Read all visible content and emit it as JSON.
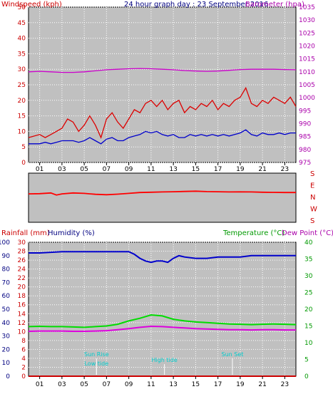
{
  "colors": {
    "plot_bg": "#c0c0c0",
    "grid": "#ffffff",
    "wind": "#ff0000",
    "gust": "#dd0000",
    "wind_avg": "#0000cc",
    "barometer": "#cc00cc",
    "direction": "#ff0000",
    "rain": "#cc0000",
    "humidity": "#0000cc",
    "temperature": "#00dd00",
    "dewpoint": "#dd00dd",
    "sun": "#00cccc",
    "axis_text_red": "#cc0000",
    "axis_text_blue": "#000080",
    "axis_text_green": "#009900",
    "axis_text_magenta": "#aa00aa",
    "axis_text_black": "#000000"
  },
  "chart_data": [
    {
      "type": "line",
      "title": "24 hour graph day : 23 September 2016",
      "left_axis_label": "Windspeed (kph)",
      "right_axis_label": "Barometer (hpa)",
      "ylim": [
        0,
        50
      ],
      "y_ticks": [
        0,
        5,
        10,
        15,
        20,
        25,
        30,
        35,
        40,
        45,
        50
      ],
      "ylim_right": [
        975,
        1035
      ],
      "y_ticks_right": [
        975,
        980,
        985,
        990,
        995,
        1000,
        1005,
        1010,
        1015,
        1020,
        1025,
        1030,
        1035
      ],
      "x_ticks": [
        "01",
        "03",
        "05",
        "07",
        "09",
        "11",
        "13",
        "15",
        "17",
        "19",
        "21",
        "23"
      ],
      "x_range_hours": [
        0,
        24
      ],
      "series": [
        {
          "key": "gust",
          "hours": [
            0,
            1,
            1.5,
            2,
            2.5,
            3,
            3.5,
            4,
            4.5,
            5,
            5.5,
            6,
            6.5,
            7,
            7.5,
            8,
            8.5,
            9,
            9.5,
            10,
            10.5,
            11,
            11.5,
            12,
            12.5,
            13,
            13.5,
            14,
            14.5,
            15,
            15.5,
            16,
            16.5,
            17,
            17.5,
            18,
            18.5,
            19,
            19.5,
            20,
            20.5,
            21,
            21.5,
            22,
            22.5,
            23,
            23.5,
            24
          ],
          "values": [
            8,
            9,
            8,
            9,
            10,
            11,
            14,
            13,
            10,
            12,
            15,
            12,
            8,
            14,
            16,
            13,
            11,
            14,
            17,
            16,
            19,
            20,
            18,
            20,
            17,
            19,
            20,
            16,
            18,
            17,
            19,
            18,
            20,
            17,
            19,
            18,
            20,
            21,
            24,
            19,
            18,
            20,
            19,
            21,
            20,
            19,
            21,
            18
          ]
        },
        {
          "key": "wind_avg",
          "hours": [
            0,
            1,
            1.5,
            2,
            2.5,
            3,
            3.5,
            4,
            4.5,
            5,
            5.5,
            6,
            6.5,
            7,
            7.5,
            8,
            8.5,
            9,
            9.5,
            10,
            10.5,
            11,
            11.5,
            12,
            12.5,
            13,
            13.5,
            14,
            14.5,
            15,
            15.5,
            16,
            16.5,
            17,
            17.5,
            18,
            18.5,
            19,
            19.5,
            20,
            20.5,
            21,
            21.5,
            22,
            22.5,
            23,
            23.5,
            24
          ],
          "values": [
            6,
            6,
            6.5,
            6,
            6.5,
            7,
            7,
            7,
            6.5,
            7,
            8,
            7,
            6,
            7.5,
            8,
            7,
            7,
            8,
            8.5,
            9,
            10,
            9.5,
            10,
            9,
            8.5,
            9,
            8,
            8,
            9,
            8.5,
            9,
            8.5,
            9,
            8.5,
            9,
            8.5,
            9,
            9.5,
            10.5,
            9,
            8.5,
            9.5,
            9,
            9,
            9.5,
            9,
            9.5,
            9.5
          ]
        },
        {
          "key": "barometer",
          "hours": [
            0,
            1,
            2,
            3,
            4,
            5,
            6,
            7,
            8,
            9,
            10,
            11,
            12,
            13,
            14,
            15,
            16,
            17,
            18,
            19,
            20,
            21,
            22,
            23,
            24
          ],
          "values": [
            1010,
            1010.2,
            1010,
            1009.8,
            1009.8,
            1010,
            1010.4,
            1010.8,
            1011,
            1011.2,
            1011.3,
            1011.2,
            1011,
            1010.8,
            1010.5,
            1010.3,
            1010.2,
            1010.3,
            1010.6,
            1010.9,
            1011,
            1011,
            1011,
            1010.9,
            1010.8
          ]
        }
      ]
    },
    {
      "type": "line",
      "direction_labels": [
        "S",
        "E",
        "N",
        "W",
        "S"
      ],
      "x_ticks": [
        "01",
        "03",
        "05",
        "07",
        "09",
        "11",
        "13",
        "15",
        "17",
        "19",
        "21",
        "23"
      ],
      "x_range_hours": [
        0,
        24
      ],
      "series": [
        {
          "key": "direction",
          "hours": [
            0,
            1,
            2,
            2.5,
            3,
            4,
            5,
            6,
            7,
            8,
            9,
            10,
            11,
            12,
            13,
            14,
            15,
            16,
            17,
            18,
            19,
            20,
            21,
            22,
            23,
            24
          ],
          "values_deg": [
            208,
            210,
            215,
            200,
            208,
            215,
            212,
            205,
            202,
            206,
            212,
            218,
            220,
            222,
            224,
            226,
            228,
            225,
            224,
            222,
            223,
            222,
            220,
            219,
            218,
            218
          ]
        }
      ]
    },
    {
      "type": "line",
      "left_axis_label_rain": "Rainfall (mm)",
      "left_axis_label_hum": "Humidity (%)",
      "right_axis_label_temp": "Temperature (°C)",
      "right_axis_label_dew": "Dew Point (°C)",
      "ylim_rain": [
        0,
        30
      ],
      "y_ticks_rain": [
        0,
        2,
        4,
        6,
        8,
        10,
        12,
        14,
        16,
        18,
        20,
        22,
        24,
        26,
        28,
        30
      ],
      "ylim_hum": [
        0,
        100
      ],
      "y_ticks_hum": [
        0,
        10,
        20,
        30,
        40,
        50,
        60,
        70,
        80,
        90,
        100
      ],
      "ylim_temp": [
        0,
        40
      ],
      "y_ticks_temp": [
        0,
        5,
        10,
        15,
        20,
        25,
        30,
        35,
        40
      ],
      "x_ticks": [
        "01",
        "03",
        "05",
        "07",
        "09",
        "11",
        "13",
        "15",
        "17",
        "19",
        "21",
        "23"
      ],
      "x_range_hours": [
        0,
        24
      ],
      "annotations": [
        {
          "text": "Sun Rise",
          "hour": 6.1
        },
        {
          "text": "Low tide",
          "hour": 6.1
        },
        {
          "text": "High tide",
          "hour": 12.2
        },
        {
          "text": "Sun Set",
          "hour": 18.3
        }
      ],
      "series": [
        {
          "key": "humidity",
          "hours": [
            0,
            1,
            2,
            3,
            4,
            5,
            6,
            7,
            8,
            9,
            9.5,
            10,
            10.5,
            11,
            11.5,
            12,
            12.5,
            13,
            13.5,
            14,
            15,
            16,
            17,
            18,
            19,
            20,
            21,
            22,
            23,
            24
          ],
          "values": [
            92,
            92,
            92.5,
            93,
            93,
            93,
            93,
            93,
            93,
            93,
            91,
            88,
            86,
            85,
            86,
            86,
            85,
            88,
            90,
            89,
            88,
            88,
            89,
            89,
            89,
            90,
            90,
            90,
            90,
            90
          ]
        },
        {
          "key": "temperature",
          "hours": [
            0,
            1,
            2,
            3,
            4,
            5,
            6,
            7,
            8,
            9,
            10,
            11,
            12,
            13,
            14,
            15,
            16,
            17,
            18,
            19,
            20,
            21,
            22,
            23,
            24
          ],
          "values": [
            14.8,
            14.9,
            14.8,
            14.8,
            14.7,
            14.6,
            14.8,
            15,
            15.5,
            16.5,
            17.3,
            18.3,
            18,
            17,
            16.5,
            16.2,
            16,
            15.8,
            15.6,
            15.5,
            15.4,
            15.5,
            15.6,
            15.5,
            15.4
          ]
        },
        {
          "key": "dewpoint",
          "hours": [
            0,
            1,
            2,
            3,
            4,
            5,
            6,
            7,
            8,
            9,
            10,
            11,
            12,
            13,
            14,
            15,
            16,
            17,
            18,
            19,
            20,
            21,
            22,
            23,
            24
          ],
          "values": [
            13.4,
            13.5,
            13.5,
            13.5,
            13.4,
            13.4,
            13.5,
            13.6,
            13.9,
            14.2,
            14.6,
            14.9,
            14.8,
            14.6,
            14.4,
            14.2,
            14.1,
            14,
            13.9,
            13.9,
            13.8,
            13.9,
            13.9,
            13.8,
            13.8
          ]
        },
        {
          "key": "rain",
          "hours": [
            0,
            6,
            12,
            18,
            24
          ],
          "values": [
            0,
            0,
            0,
            0,
            0
          ]
        }
      ]
    }
  ]
}
